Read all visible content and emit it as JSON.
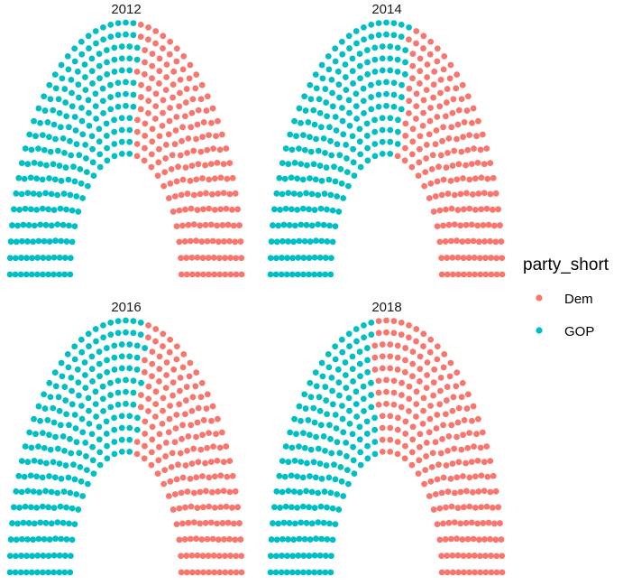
{
  "chart_data": {
    "type": "scatter",
    "subtype": "parliament",
    "title": "",
    "xlabel": "",
    "ylabel": "",
    "grid": false,
    "legend": {
      "title": "party_short",
      "position": "right",
      "entries": [
        {
          "label": "Dem",
          "color": "#F8766D"
        },
        {
          "label": "GOP",
          "color": "#00BFC4"
        }
      ]
    },
    "rows": 12,
    "facets": [
      {
        "year": "2012",
        "Dem": 201,
        "GOP": 234
      },
      {
        "year": "2014",
        "Dem": 188,
        "GOP": 247
      },
      {
        "year": "2016",
        "Dem": 194,
        "GOP": 241
      },
      {
        "year": "2018",
        "Dem": 235,
        "GOP": 200
      }
    ]
  }
}
